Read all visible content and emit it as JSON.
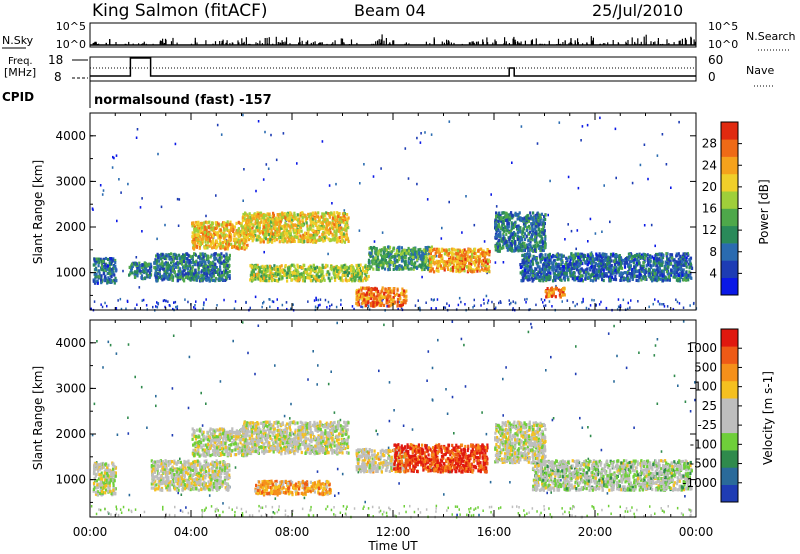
{
  "header": {
    "station": "King Salmon (fitACF)",
    "beam": "Beam 04",
    "date": "25/Jul/2010"
  },
  "status_panel": {
    "nsky_label": "N.Sky",
    "nsky_ticks": [
      "10^5",
      "10^0"
    ],
    "nsearch_label": "N.Search",
    "nsearch_ticks": [
      "10^5",
      "10^0"
    ],
    "freq_label": "Freq.",
    "freq_unit": "[MHz]",
    "freq_ticks": [
      "18",
      "8"
    ],
    "nave_label": "Nave",
    "nave_ticks": [
      "60",
      "0"
    ],
    "cpid_label": "CPID",
    "cpid_value": "normalsound (fast) -157"
  },
  "chart_data": [
    {
      "type": "heatmap",
      "name": "power",
      "ylabel": "Slant Range [km]",
      "ylim": [
        180,
        4500
      ],
      "yticks": [
        "1000",
        "2000",
        "3000",
        "4000"
      ],
      "xlim": [
        0,
        24
      ],
      "colorbar": {
        "label": "Power [dB]",
        "ticks": [
          "4",
          "8",
          "12",
          "16",
          "20",
          "24",
          "28"
        ],
        "colors": [
          "#0a18e6",
          "#1d3cb4",
          "#2a6bb0",
          "#2a8a5a",
          "#4ea84a",
          "#9fcf3a",
          "#f0cf2a",
          "#f5a21c",
          "#ef6a16",
          "#e02a10"
        ]
      },
      "regions": [
        {
          "t0": 0.1,
          "t1": 1.0,
          "r0": 800,
          "r1": 1350,
          "level": 0.25
        },
        {
          "t0": 1.5,
          "t1": 2.4,
          "r0": 900,
          "r1": 1250,
          "level": 0.3
        },
        {
          "t0": 2.5,
          "t1": 5.5,
          "r0": 850,
          "r1": 1450,
          "level": 0.3
        },
        {
          "t0": 4.0,
          "t1": 6.2,
          "r0": 1550,
          "r1": 2150,
          "level": 0.7
        },
        {
          "t0": 6.0,
          "t1": 10.2,
          "r0": 1700,
          "r1": 2350,
          "level": 0.65
        },
        {
          "t0": 6.3,
          "t1": 11.0,
          "r0": 850,
          "r1": 1200,
          "level": 0.55
        },
        {
          "t0": 10.5,
          "t1": 12.5,
          "r0": 300,
          "r1": 700,
          "level": 0.8
        },
        {
          "t0": 11.0,
          "t1": 13.5,
          "r0": 1100,
          "r1": 1600,
          "level": 0.4
        },
        {
          "t0": 13.4,
          "t1": 15.8,
          "r0": 1050,
          "r1": 1550,
          "level": 0.75
        },
        {
          "t0": 16.0,
          "t1": 18.0,
          "r0": 1500,
          "r1": 2350,
          "level": 0.3
        },
        {
          "t0": 17.0,
          "t1": 23.8,
          "r0": 850,
          "r1": 1450,
          "level": 0.25
        },
        {
          "t0": 18.0,
          "t1": 18.8,
          "r0": 500,
          "r1": 700,
          "level": 0.85
        }
      ]
    },
    {
      "type": "heatmap",
      "name": "velocity",
      "ylabel": "Slant Range [km]",
      "ylim": [
        180,
        4500
      ],
      "yticks": [
        "1000",
        "2000",
        "3000",
        "4000"
      ],
      "xlim": [
        0,
        24
      ],
      "xticks": [
        "00:00",
        "04:00",
        "08:00",
        "12:00",
        "16:00",
        "20:00",
        "00:00"
      ],
      "xlabel": "Time UT",
      "colorbar": {
        "label": "Velocity [m s-1]",
        "ticks": [
          "1000",
          "500",
          "100",
          "25",
          "-25",
          "-100",
          "-500",
          "-1000"
        ],
        "colors": [
          "#1f3cb4",
          "#2a6a9a",
          "#2f8a4c",
          "#6fcf3a",
          "#bebebe",
          "#bebebe",
          "#f5c020",
          "#f5901a",
          "#ee5a16",
          "#e0180f"
        ]
      },
      "regions": [
        {
          "t0": 0.1,
          "t1": 1.0,
          "r0": 700,
          "r1": 1400,
          "level": 0.5
        },
        {
          "t0": 2.4,
          "t1": 5.5,
          "r0": 800,
          "r1": 1450,
          "level": 0.5
        },
        {
          "t0": 4.0,
          "t1": 6.2,
          "r0": 1550,
          "r1": 2150,
          "level": 0.48
        },
        {
          "t0": 6.0,
          "t1": 10.2,
          "r0": 1600,
          "r1": 2300,
          "level": 0.5
        },
        {
          "t0": 6.5,
          "t1": 9.5,
          "r0": 700,
          "r1": 1000,
          "level": 0.72
        },
        {
          "t0": 10.5,
          "t1": 12.5,
          "r0": 1200,
          "r1": 1700,
          "level": 0.55
        },
        {
          "t0": 12.0,
          "t1": 15.7,
          "r0": 1200,
          "r1": 1800,
          "level": 0.9
        },
        {
          "t0": 16.0,
          "t1": 18.0,
          "r0": 1400,
          "r1": 2300,
          "level": 0.5
        },
        {
          "t0": 17.5,
          "t1": 23.8,
          "r0": 800,
          "r1": 1450,
          "level": 0.45
        }
      ]
    }
  ]
}
